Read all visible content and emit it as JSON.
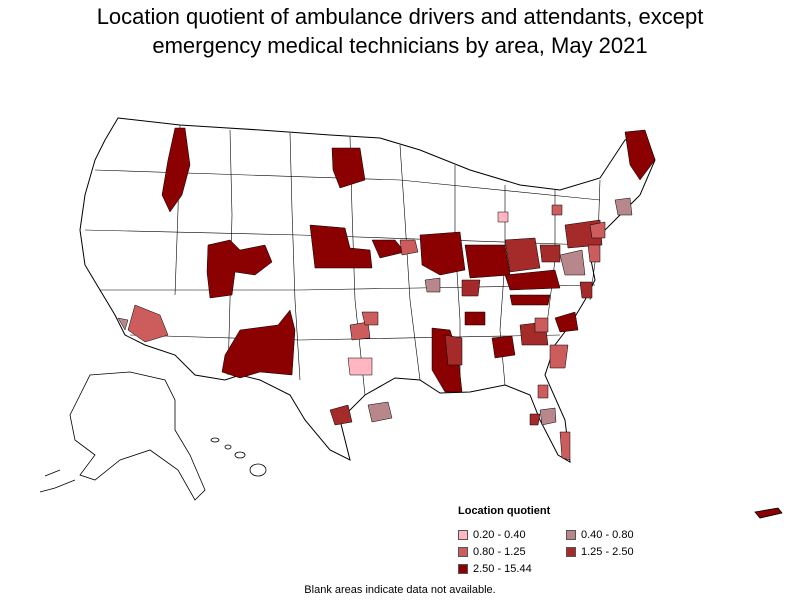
{
  "title": {
    "line1": "Location quotient of ambulance drivers and attendants, except",
    "line2": "emergency medical technicians by area, May 2021"
  },
  "legend": {
    "title": "Location quotient",
    "items": [
      {
        "label": "0.20 - 0.40",
        "color": "#ffb6c1"
      },
      {
        "label": "0.40 - 0.80",
        "color": "#b7878c"
      },
      {
        "label": "0.80 - 1.25",
        "color": "#cd5c5c"
      },
      {
        "label": "1.25 - 2.50",
        "color": "#a52a2a"
      },
      {
        "label": "2.50 - 15.44",
        "color": "#8b0000"
      }
    ]
  },
  "footnote": "Blank areas indicate data not available.",
  "colors": {
    "c1": "#ffb6c1",
    "c2": "#b7878c",
    "c3": "#cd5c5c",
    "c4": "#a52a2a",
    "c5": "#8b0000",
    "outline": "#000000"
  }
}
